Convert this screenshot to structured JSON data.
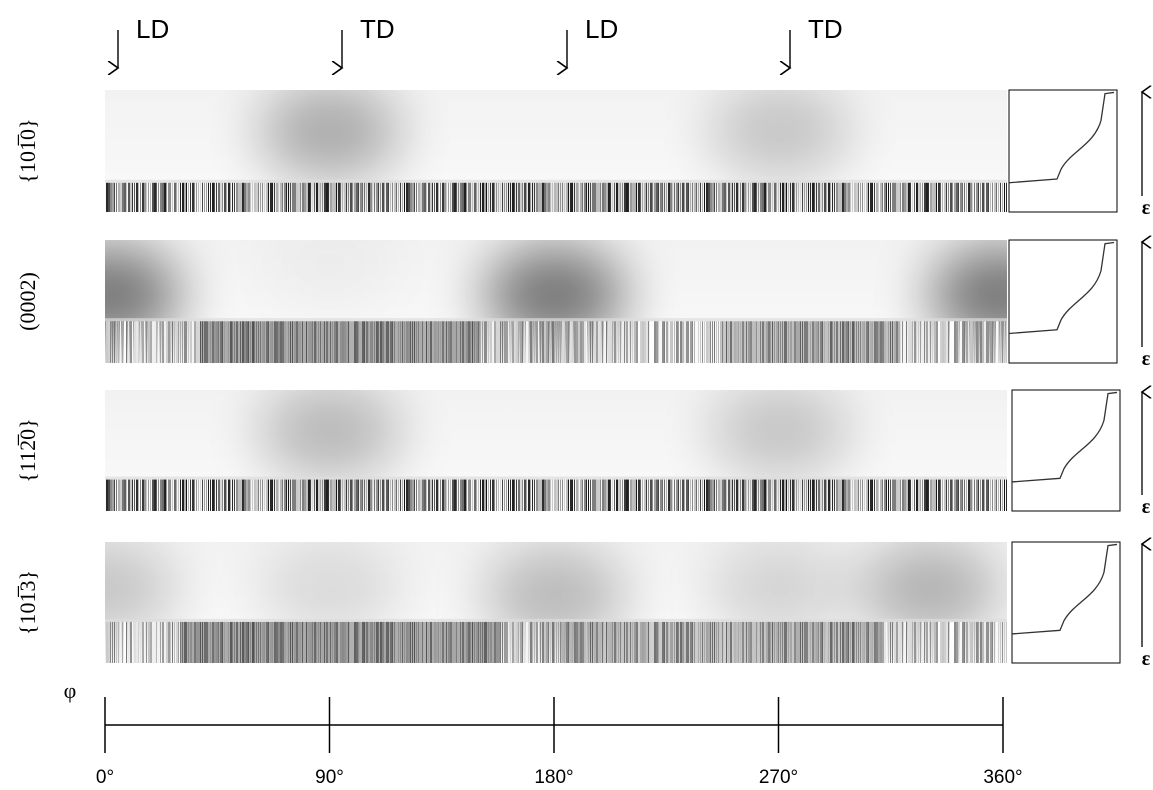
{
  "directions": [
    "LD",
    "TD",
    "LD",
    "TD"
  ],
  "row_labels": [
    "{101̅0}",
    "(0002)",
    "{112̅0}",
    "{101̅3}"
  ],
  "strain_label": "ε",
  "axis": {
    "label": "φ",
    "ticks": [
      {
        "value": 0,
        "label": "0°"
      },
      {
        "value": 90,
        "label": "90°"
      },
      {
        "value": 180,
        "label": "180°"
      },
      {
        "value": 270,
        "label": "270°"
      },
      {
        "value": 360,
        "label": "360°"
      }
    ]
  }
}
